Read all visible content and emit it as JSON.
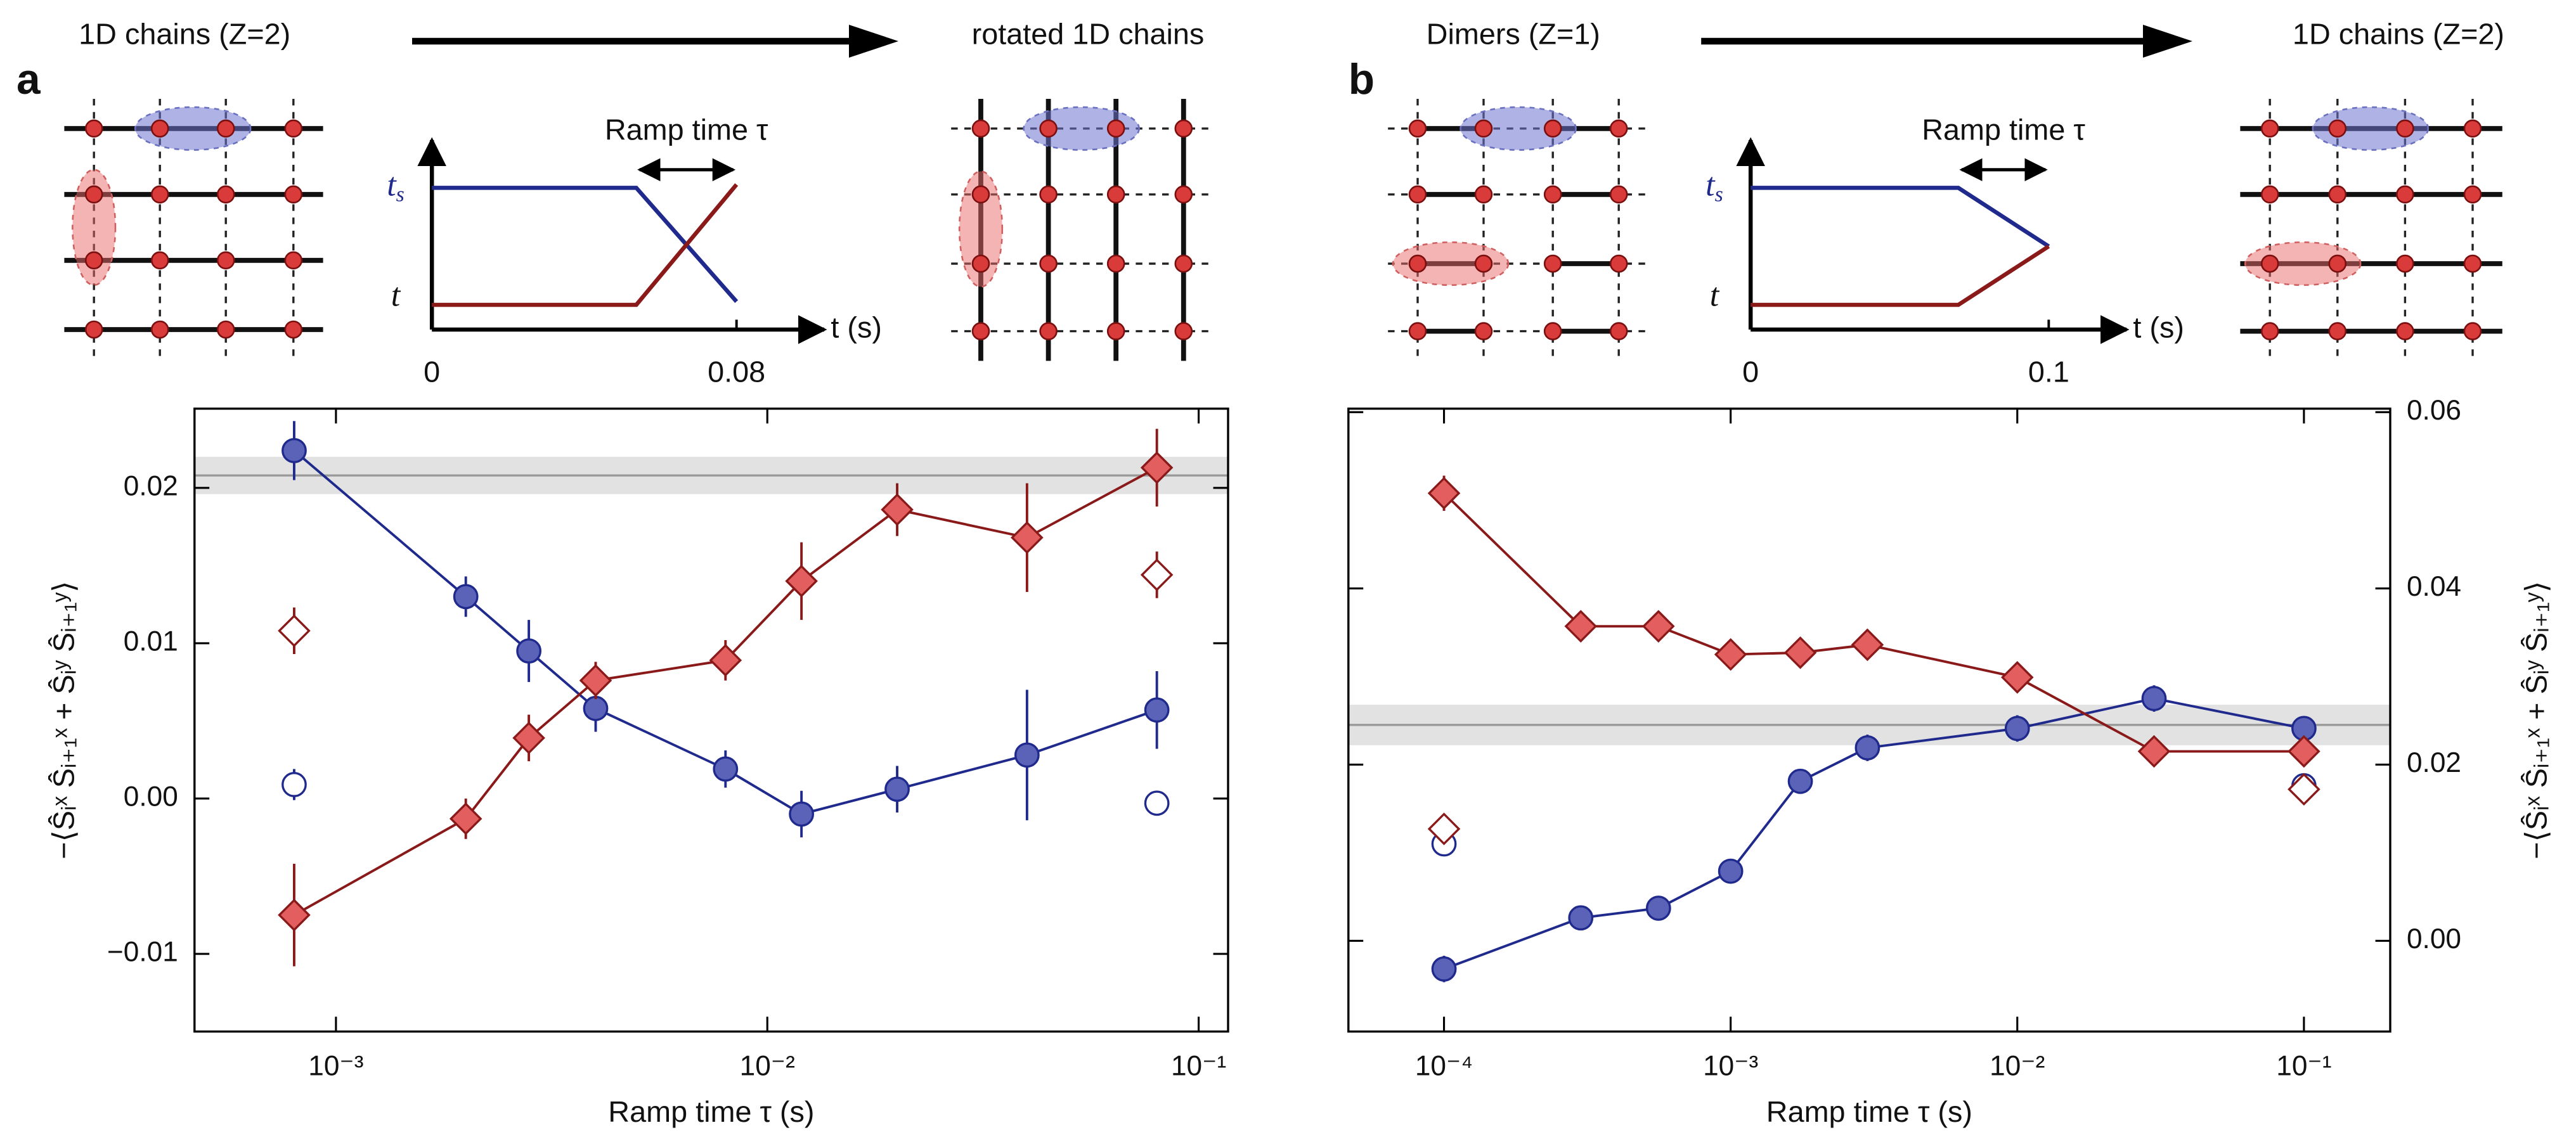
{
  "panels": [
    {
      "label": "a",
      "from_caption": "1D chains (Z=2)",
      "to_caption": "rotated 1D chains",
      "inset": {
        "annotation": "Ramp time τ",
        "upper_label": "t",
        "upper_label_sub": "s",
        "lower_label": "t",
        "xlabel": "t (s)",
        "xlim": [
          0,
          0.1
        ],
        "xticks": [
          0,
          0.08
        ]
      }
    },
    {
      "label": "b",
      "from_caption": "Dimers (Z=1)",
      "to_caption": "1D chains (Z=2)",
      "inset": {
        "annotation": "Ramp time τ",
        "upper_label": "t",
        "upper_label_sub": "s",
        "lower_label": "t",
        "xlabel": "t (s)",
        "xlim": [
          0,
          0.12
        ],
        "xticks": [
          0,
          0.1
        ]
      }
    }
  ],
  "chart_data": [
    {
      "type": "line",
      "xlabel": "Ramp time τ (s)",
      "ylabel": "−⟨Ŝᵢˣ Ŝᵢ₊₁ˣ + Ŝᵢʸ Ŝᵢ₊₁ʸ⟩",
      "xlog": true,
      "xlim": [
        0.00047,
        0.117
      ],
      "xticks": [
        {
          "value": 0.001,
          "label": "10⁻³"
        },
        {
          "value": 0.01,
          "label": "10⁻²"
        },
        {
          "value": 0.1,
          "label": "10⁻¹"
        }
      ],
      "ylim": [
        -0.015,
        0.0251
      ],
      "yticks": [
        {
          "value": -0.01,
          "label": "−0.01"
        },
        {
          "value": 0,
          "label": "0.00"
        },
        0.01,
        0.02
      ],
      "y_axis_side": "left",
      "reference": {
        "value": 0.0208,
        "error": 0.0012,
        "color": "#999999"
      },
      "series": [
        {
          "marker": "circle",
          "filled": true,
          "color": "#5b63b8",
          "edge_color": "#1f2a8c",
          "x": [
            0.0008,
            0.002,
            0.0028,
            0.004,
            0.008,
            0.012,
            0.02,
            0.04,
            0.08
          ],
          "values": [
            0.0224,
            0.013,
            0.0095,
            0.0058,
            0.0019,
            -0.001,
            0.0006,
            0.0028,
            0.0057
          ],
          "errors": [
            0.0019,
            0.0013,
            0.002,
            0.0015,
            0.0012,
            0.0015,
            0.0015,
            0.0042,
            0.0025
          ]
        },
        {
          "marker": "diamond",
          "filled": true,
          "color": "#e35f5f",
          "edge_color": "#8a1a1a",
          "x": [
            0.0008,
            0.002,
            0.0028,
            0.004,
            0.008,
            0.012,
            0.02,
            0.04,
            0.08
          ],
          "values": [
            -0.0075,
            -0.0013,
            0.0039,
            0.0076,
            0.0089,
            0.014,
            0.0186,
            0.0168,
            0.0213
          ],
          "errors": [
            0.0033,
            0.0013,
            0.0015,
            0.0012,
            0.0013,
            0.0025,
            0.0017,
            0.0035,
            0.0025
          ]
        },
        {
          "marker": "circle",
          "filled": false,
          "line": false,
          "color": "#ffffff",
          "edge_color": "#1f2a8c",
          "x": [
            0.0008,
            0.08
          ],
          "values": [
            0.0009,
            -0.0003
          ],
          "errors": [
            0.001,
            0.0008
          ]
        },
        {
          "marker": "diamond",
          "filled": false,
          "line": false,
          "color": "#ffffff",
          "edge_color": "#8a1a1a",
          "x": [
            0.0008,
            0.08
          ],
          "values": [
            0.0108,
            0.0144
          ],
          "errors": [
            0.0015,
            0.0015
          ]
        }
      ]
    },
    {
      "type": "line",
      "xlabel": "Ramp time τ (s)",
      "ylabel": "−⟨Ŝᵢˣ Ŝᵢ₊₁ˣ + Ŝᵢʸ Ŝᵢ₊₁ʸ⟩",
      "xlog": true,
      "xlim": [
        4.64e-05,
        0.2
      ],
      "xticks": [
        {
          "value": 0.0001,
          "label": "10⁻⁴"
        },
        {
          "value": 0.001,
          "label": "10⁻³"
        },
        {
          "value": 0.01,
          "label": "10⁻²"
        },
        {
          "value": 0.1,
          "label": "10⁻¹"
        }
      ],
      "ylim": [
        -0.0103,
        0.0604
      ],
      "yticks": [
        {
          "value": 0,
          "label": "0.00"
        },
        0.02,
        0.04,
        0.06
      ],
      "y_axis_side": "right",
      "reference": {
        "value": 0.0245,
        "error": 0.0023,
        "color": "#999999"
      },
      "series": [
        {
          "marker": "circle",
          "filled": true,
          "color": "#5b63b8",
          "edge_color": "#1f2a8c",
          "x": [
            0.0001,
            0.0003,
            0.00056,
            0.001,
            0.00175,
            0.003,
            0.01,
            0.03,
            0.1
          ],
          "values": [
            -0.0032,
            0.0026,
            0.0037,
            0.0079,
            0.0181,
            0.0219,
            0.0241,
            0.0275,
            0.0241
          ],
          "errors": [
            0.0015,
            0.0012,
            0.0012,
            0.001,
            0.0012,
            0.0015,
            0.0015,
            0.0015,
            0.001
          ]
        },
        {
          "marker": "diamond",
          "filled": true,
          "color": "#e35f5f",
          "edge_color": "#8a1a1a",
          "x": [
            0.0001,
            0.0003,
            0.00056,
            0.001,
            0.00175,
            0.003,
            0.01,
            0.03,
            0.1
          ],
          "values": [
            0.0508,
            0.0357,
            0.0357,
            0.0325,
            0.0327,
            0.0336,
            0.0299,
            0.0215,
            0.0215
          ],
          "errors": [
            0.002,
            0.001,
            0.001,
            0.0012,
            0.001,
            0.001,
            0.001,
            0.001,
            0.001
          ]
        },
        {
          "marker": "circle",
          "filled": false,
          "line": false,
          "color": "#ffffff",
          "edge_color": "#1f2a8c",
          "x": [
            0.0001,
            0.1
          ],
          "values": [
            0.011,
            0.0176
          ],
          "errors": [
            0.0008,
            0.0008
          ]
        },
        {
          "marker": "diamond",
          "filled": false,
          "line": false,
          "color": "#ffffff",
          "edge_color": "#8a1a1a",
          "x": [
            0.0001,
            0.1
          ],
          "values": [
            0.0127,
            0.0172
          ],
          "errors": [
            0.0008,
            0.0008
          ]
        }
      ]
    }
  ]
}
